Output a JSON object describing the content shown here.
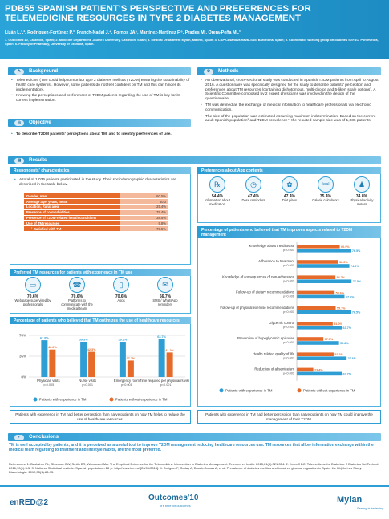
{
  "header": {
    "title": "PDB55 SPANISH PATIENT'S PERSPECTIVE AND PREFERENCES FOR\nTELEMEDICINE RESOURCES IN TYPE 2 DIABETES MANAGEMENT",
    "authors": "Lizán L.¹,², Rodríguez-Fortúnez P.³, Franch-Nadal J.⁴, Fornos JA⁵, Martínez-Martínez F.⁶, Prades M¹, Orera-Peña ML³",
    "affiliations": "1. Outcomes'10, Castellón, Spain; 2. Medicine Department, Jaume I University, Castellón, Spain; 3. Medical Department Mylan, Madrid, Spain; 4. CAP Casanova Raval-Sud, Barcelona, Spain; 5. Coordinator working group on diabetes SEFAC, Pontevedra, Spain; 6. Faculty of Pharmacy, University of Granada, Spain."
  },
  "background": {
    "heading": "Background",
    "bullets": [
      "Telemedicine (TM) could help to monitor type 2 diabetes mellitus (T2DM) ensuring the sustainability of health care systems¹. However, some patients do not feel confident on TM and this can hinder its implementation².",
      "Knowing the perceptions and preferences of T2DM patients regarding the use of TM is key for its correct implementation."
    ]
  },
  "objective": {
    "heading": "Objective",
    "text": "To describe T2DM patients' perceptions about TM, and to identify preferences of use."
  },
  "methods": {
    "heading": "Methods",
    "bullets": [
      "An observational, cross-sectional study was conducted in Spanish T2DM patients from April to August, 2016. A questionnaire was specifically designed for the study to describe patients' perception and preferences about TM resources (containing dichotomous, multi-choice and 5-likert scale options). A Scientific Committee composed by 2 expert physicians was involved in the design of the questionnaire.",
      "TM was defined as the exchange of medical information to healthcare professionals via electronic communication.",
      "The size of the population was estimated assuming maximum indetermination. Based on the current adult Spanish population³ and T2DM prevalence⁴, the resulted sample size was of 1,036 patients."
    ]
  },
  "results": {
    "heading": "Results",
    "respondents": {
      "title": "Respondents' characteristics",
      "intro": "A total of 1,036 patients participated in the study. Their sociodemographic characteristics are described in the table below.",
      "rows": [
        {
          "label": "Gender, men",
          "value": "60.5%"
        },
        {
          "label": "Average age, years, mean",
          "value": "60.3"
        },
        {
          "label": "Location, Rural area",
          "value": "25.4%"
        },
        {
          "label": "Presence of co-morbidities",
          "value": "79.4%"
        },
        {
          "label": "Presence of T2DM-related health conditions",
          "value": "38.5%"
        },
        {
          "label": "Use of TM resources",
          "value": "9.8%"
        },
        {
          "label": "└ Satisfied with TM",
          "value": "70.5%"
        }
      ]
    },
    "preferred": {
      "title": "Preferred TM resources for patients with experience in TM use",
      "items": [
        {
          "pct": "70.6%",
          "label": "Web page supervised by professionals",
          "icon": "web-icon"
        },
        {
          "pct": "70.6%",
          "label": "Platforms to communicate with the medical team",
          "icon": "platform-icon"
        },
        {
          "pct": "70.6%",
          "label": "Apps",
          "icon": "app-icon"
        },
        {
          "pct": "66.7%",
          "label": "SMS / WhatsApp reminders",
          "icon": "sms-icon"
        }
      ]
    },
    "app_content": {
      "title": "Preferences about App contents",
      "items": [
        {
          "pct": "54.4%",
          "label": "Information about medication",
          "icon": "pill-icon"
        },
        {
          "pct": "47.4%",
          "label": "Dose reminders",
          "icon": "clock-icon"
        },
        {
          "pct": "47.4%",
          "label": "Diet plans",
          "icon": "diet-icon"
        },
        {
          "pct": "35.4%",
          "label": "Calorie calculators",
          "icon": "kcal-icon"
        },
        {
          "pct": "34.8%",
          "label": "Physical activity meters",
          "icon": "runner-icon"
        }
      ]
    },
    "note_left": "Patients with experience in TM had better perception than naïve patients on how TM helps to reduce the use of healthcare resources.",
    "note_right": "Patients with experience in TM had better perception than naïve patients on how TM could improve the management of their T2DM."
  },
  "conclusions": {
    "heading": "Conclusions",
    "text": "TM is well accepted by patients, and it is perceived as a useful tool to improve T2DM management reducing healthcare resources use. TM resources that allow information exchange within the medical team regarding to treatment and lifestyle habits, are the most preferred."
  },
  "references": "References: 1. Bashshur RL, Shannon GW, Smith BR, Woodward MA. The Empirical Evidence for the Telemedicine Intervention in Diabetes Management. Telemed e-Health. 2015;21(5):321-354. 2. Kornoff DC. Telemedicine for Diabetes. J Diabetes Sci Technol. 2016;10(1):3-5. 3. National Statistical Institute. Spanish population >18 yr. http://www.ine.es/ [20/01/2016]. 4. Soriguer F, Goday A, Bosch-Comas A, et al. Prevalence of diabetes mellitus and impaired glucose regulation in Spain: the Di@bet.es Study. Diabetologia. 2012;55(1):88-93.",
  "footer": {
    "logo1": "enRED@2",
    "logo2": "Outcomes'10",
    "logo2_sub": "it's time for outcomes",
    "logo3": "Mylan",
    "logo3_sub": "Seeing is believing"
  },
  "colors": {
    "blue": "#2f9ed5",
    "experience": "#2f9ed5",
    "no_experience": "#e66b2b"
  },
  "chart_data": [
    {
      "type": "bar",
      "title": "Percentage of patients who believed that TM optimizes the use of healthcare resources",
      "categories": [
        "Physician visits",
        "Nurse visits",
        "Emergency room",
        "Time required per physician's visits"
      ],
      "pvalues": [
        "p=0.005",
        "p<0.001",
        "p<0.001",
        "p<0.001"
      ],
      "series": [
        {
          "name": "Patients with experience in TM",
          "values": [
            61.8,
            59.3,
            59.2,
            63.7
          ]
        },
        {
          "name": "Patients without experience in TM",
          "values": [
            46.2,
            42.3,
            27.7,
            41.2
          ]
        }
      ],
      "yticks": [
        "0%",
        "35%",
        "70%"
      ],
      "ylim": [
        0,
        70
      ],
      "legend": "bottom"
    },
    {
      "type": "bar",
      "orientation": "horizontal",
      "title": "Percentage of patients who believed that TM improves aspects related to T2DM management",
      "categories": [
        "Knowledge about the disease",
        "Adherence to treatment",
        "Knowledge of consequences of non-adherence",
        "Follow-up of dietary recommendations",
        "Follow-up of physical exercise recommendations",
        "Glycemic control",
        "Prevention of hypoglycemic episodes",
        "Health related quality of life",
        "Reduction of absenteeism"
      ],
      "pvalues": [
        "p=0.001",
        "p<0.001",
        "p<0.001",
        "p=0.006",
        "p<0.001",
        "p<0.001",
        "p<0.001",
        "p=0.003",
        "p<0.001"
      ],
      "series": [
        {
          "name": "Patients with experience in TM",
          "values": [
            76.5,
            74.5,
            77.5,
            67.6,
            76.5,
            63.7,
            59.8,
            70.6,
            63.7
          ]
        },
        {
          "name": "Patients without experience in TM",
          "values": [
            60.9,
            58.6,
            54.7,
            53.6,
            55.1,
            51.0,
            37.7,
            52.2,
            23.4
          ]
        }
      ],
      "xlim": [
        0,
        100
      ],
      "legend": "bottom"
    }
  ]
}
